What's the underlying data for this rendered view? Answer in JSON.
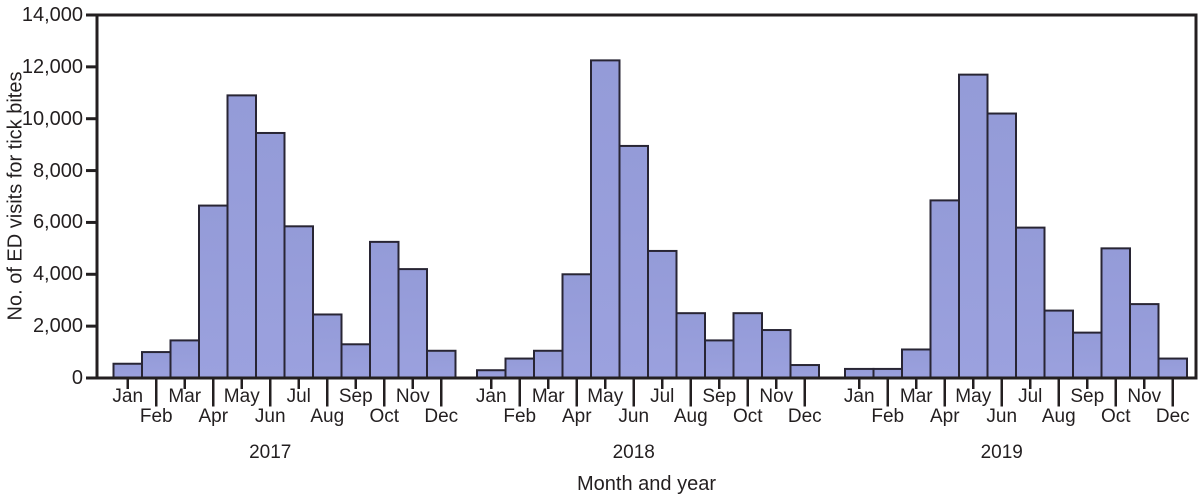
{
  "chart_data": {
    "type": "bar",
    "title": "",
    "ylabel": "No. of ED visits for tick bites",
    "xlabel": "Month and year",
    "ylim": [
      0,
      14000
    ],
    "ytick_interval": 2000,
    "ytick_labels": [
      "0",
      "2,000",
      "4,000",
      "6,000",
      "8,000",
      "10,000",
      "12,000",
      "14,000"
    ],
    "grid": false,
    "legend": "none",
    "months": [
      "Jan",
      "Feb",
      "Mar",
      "Apr",
      "May",
      "Jun",
      "Jul",
      "Aug",
      "Sep",
      "Oct",
      "Nov",
      "Dec"
    ],
    "series": [
      {
        "name": "2017",
        "values": [
          550,
          1000,
          1450,
          6650,
          10900,
          9450,
          5850,
          2450,
          1300,
          5250,
          4200,
          1050
        ]
      },
      {
        "name": "2018",
        "values": [
          300,
          750,
          1050,
          4000,
          12250,
          8950,
          4900,
          2500,
          1450,
          2500,
          1850,
          500
        ]
      },
      {
        "name": "2019",
        "values": [
          350,
          350,
          1100,
          6850,
          11700,
          10200,
          5800,
          2600,
          1750,
          5000,
          2850,
          750
        ]
      }
    ],
    "colors": {
      "bar_fill": "#949bd8",
      "bar_fill_light": "#9ba1de",
      "bar_border": "#282534",
      "axis": "#231f20",
      "text": "#231f20",
      "background": "#ffffff"
    }
  }
}
